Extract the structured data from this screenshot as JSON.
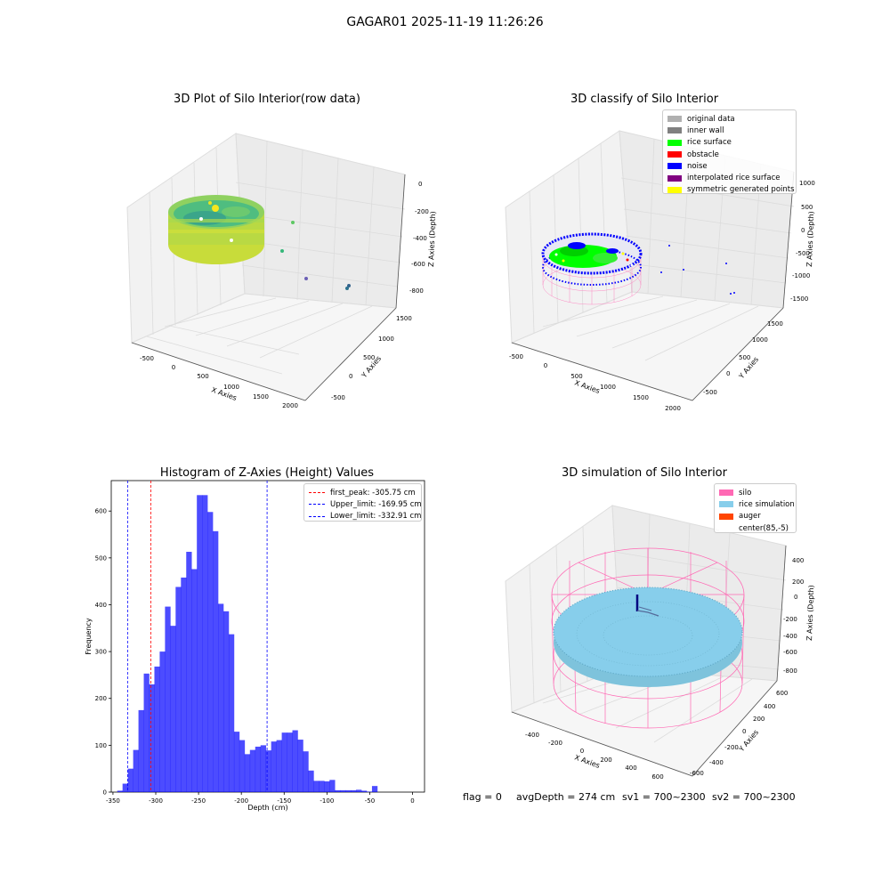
{
  "suptitle": "GAGAR01 2025-11-19 11:26:26",
  "panels": {
    "raw": {
      "title": "3D Plot of Silo Interior(row data)",
      "xlabel": "X Axies",
      "ylabel": "Y Axies",
      "zlabel": "Z Axies (Depth)",
      "xticks": [
        "-500",
        "0",
        "500",
        "1000",
        "1500",
        "2000"
      ],
      "yticks": [
        "-500",
        "0",
        "500",
        "1000",
        "1500"
      ],
      "zticks": [
        "0",
        "-200",
        "-400",
        "-600",
        "-800"
      ]
    },
    "classify": {
      "title": "3D classify of Silo Interior",
      "xlabel": "X Axies",
      "ylabel": "Y Axies",
      "zlabel": "Z Axies (Depth)",
      "xticks": [
        "-500",
        "0",
        "500",
        "1000",
        "1500",
        "2000"
      ],
      "yticks": [
        "-500",
        "0",
        "500",
        "1000",
        "1500"
      ],
      "zticks": [
        "1000",
        "500",
        "0",
        "-500",
        "-1000",
        "-1500"
      ],
      "legend": [
        {
          "label": "original data",
          "color": "#b0b0b0"
        },
        {
          "label": "inner wall",
          "color": "#808080"
        },
        {
          "label": "rice surface",
          "color": "#00ff00"
        },
        {
          "label": "obstacle",
          "color": "#ff0000"
        },
        {
          "label": "noise",
          "color": "#0000ff"
        },
        {
          "label": "interpolated rice surface",
          "color": "#800080"
        },
        {
          "label": "symmetric generated points",
          "color": "#ffff00"
        }
      ]
    },
    "simulation": {
      "title": "3D simulation of Silo Interior",
      "xlabel": "X Axies",
      "ylabel": "Y Axies",
      "zlabel": "Z Axies (Depth)",
      "xticks": [
        "-400",
        "-200",
        "0",
        "200",
        "400",
        "600"
      ],
      "yticks": [
        "-600",
        "-400",
        "-200",
        "0",
        "200",
        "400",
        "600"
      ],
      "zticks": [
        "400",
        "200",
        "0",
        "-200",
        "-400",
        "-600",
        "-800"
      ],
      "legend": [
        {
          "label": "silo",
          "color": "#ff69b4"
        },
        {
          "label": "rice simulation",
          "color": "#87ceeb"
        },
        {
          "label": "auger",
          "color": "#ff4500"
        },
        {
          "label": "center(85,-5)",
          "color": "#ffffff"
        }
      ]
    }
  },
  "chart_data": {
    "type": "bar",
    "title": "Histogram of Z-Axies (Height) Values",
    "xlabel": "Depth (cm)",
    "ylabel": "Frequency",
    "bar_color": "#0000ff",
    "xlim": [
      -352,
      14
    ],
    "ylim": [
      0,
      665
    ],
    "xticks": [
      -350,
      -300,
      -250,
      -200,
      -150,
      -100,
      -50,
      0
    ],
    "yticks": [
      0,
      100,
      200,
      300,
      400,
      500,
      600
    ],
    "bin_start": -345,
    "bin_width": 6.2,
    "values": [
      3,
      18,
      50,
      90,
      175,
      253,
      230,
      268,
      300,
      396,
      355,
      438,
      458,
      513,
      476,
      634,
      634,
      598,
      557,
      402,
      386,
      337,
      129,
      111,
      81,
      90,
      97,
      100,
      89,
      108,
      111,
      127,
      127,
      132,
      112,
      87,
      46,
      24,
      24,
      23,
      26,
      4,
      4,
      4,
      4,
      5,
      3,
      1,
      13
    ],
    "vlines": [
      {
        "label": "first_peak: -305.75 cm",
        "x": -305.75,
        "color": "#ff0000"
      },
      {
        "label": "Upper_limit: -169.95 cm",
        "x": -169.95,
        "color": "#0000ff"
      },
      {
        "label": "Lower_limit: -332.91 cm",
        "x": -332.91,
        "color": "#0000ff"
      }
    ]
  },
  "footer": {
    "flag": "flag = 0",
    "avg": "avgDepth = 274 cm",
    "sv1": "sv1 = 700~2300",
    "sv2": "sv2 = 700~2300"
  }
}
